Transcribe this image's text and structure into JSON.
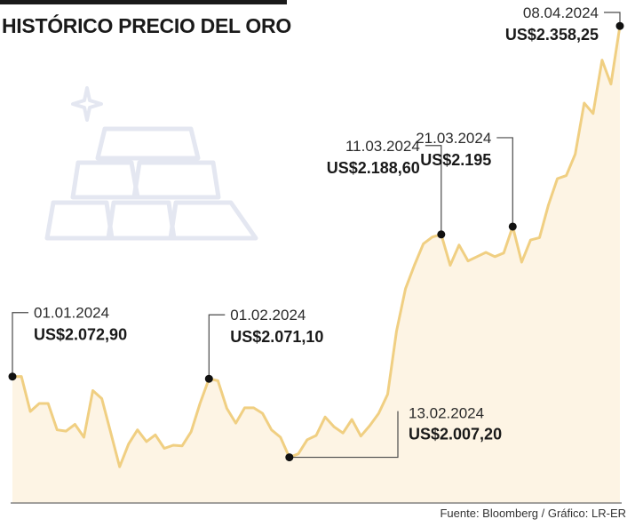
{
  "chart_data": {
    "type": "area",
    "title": "HISTÓRICO PRECIO DEL ORO",
    "source": "Fuente: Bloomberg / Gráfico: LR-ER",
    "xlabel": "",
    "ylabel": "",
    "ylim": [
      1970,
      2370
    ],
    "grid": false,
    "legend": "none",
    "colors": {
      "line": "#f0cf82",
      "fill": "#fdf4e4",
      "text": "#1a1a1a"
    },
    "series": [
      {
        "values": [
          2072.9,
          2073.0,
          2044.5,
          2051.0,
          2051.0,
          2029.5,
          2028.5,
          2034.0,
          2023.5,
          2061.5,
          2055.0,
          2027.5,
          1999.5,
          2018.0,
          2029.5,
          2020.0,
          2025.5,
          2014.5,
          2017.0,
          2016.5,
          2028.0,
          2051.0,
          2071.1,
          2069.5,
          2047.0,
          2035.0,
          2047.5,
          2047.5,
          2043.0,
          2029.5,
          2023.5,
          2007.2,
          2010.0,
          2021.5,
          2025.0,
          2040.0,
          2032.0,
          2027.0,
          2038.0,
          2024.5,
          2033.0,
          2043.0,
          2058.5,
          2110.0,
          2144.5,
          2163.5,
          2181.0,
          2186.5,
          2188.6,
          2163.5,
          2180.0,
          2167.0,
          2170.5,
          2174.0,
          2170.5,
          2173.5,
          2195.0,
          2166.0,
          2184.0,
          2186.0,
          2212.5,
          2234.0,
          2236.5,
          2254.0,
          2295.5,
          2287.0,
          2330.5,
          2311.0,
          2358.25
        ]
      }
    ],
    "annotations": [
      {
        "date": "01.01.2024",
        "value_label": "US$2.072,90",
        "index": 0,
        "label_pos": "upper-right"
      },
      {
        "date": "01.02.2024",
        "value_label": "US$2.071,10",
        "index": 22,
        "label_pos": "upper-right"
      },
      {
        "date": "13.02.2024",
        "value_label": "US$2.007,20",
        "index": 31,
        "label_pos": "lower-right"
      },
      {
        "date": "11.03.2024",
        "value_label": "US$2.188,60",
        "index": 48,
        "label_pos": "upper-left"
      },
      {
        "date": "21.03.2024",
        "value_label": "US$2.195",
        "index": 56,
        "label_pos": "upper-left"
      },
      {
        "date": "08.04.2024",
        "value_label": "US$2.358,25",
        "index": 68,
        "label_pos": "upper-left"
      }
    ]
  }
}
